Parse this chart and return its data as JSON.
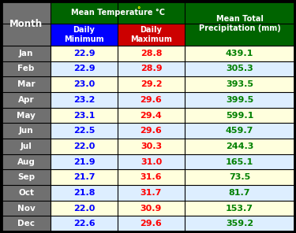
{
  "months": [
    "Jan",
    "Feb",
    "Mar",
    "Apr",
    "May",
    "Jun",
    "Jul",
    "Aug",
    "Sep",
    "Oct",
    "Nov",
    "Dec"
  ],
  "daily_min": [
    22.9,
    22.9,
    23.0,
    23.2,
    23.1,
    22.5,
    22.0,
    21.9,
    21.7,
    21.8,
    22.0,
    22.6
  ],
  "daily_max": [
    28.8,
    28.9,
    29.2,
    29.6,
    29.4,
    29.6,
    30.3,
    31.0,
    31.6,
    31.7,
    30.9,
    29.6
  ],
  "precipitation": [
    439.1,
    305.3,
    393.5,
    399.5,
    599.1,
    459.7,
    244.3,
    165.1,
    73.5,
    81.7,
    153.7,
    359.2
  ],
  "header_bg_dark_green": "#006400",
  "header_bg_blue": "#0000FF",
  "header_bg_red": "#CC0000",
  "header_text_color": "#FFFFFF",
  "month_col_bg": "#707070",
  "row_bg_light_yellow": "#FFFFDD",
  "row_bg_light_blue": "#DDEEFF",
  "min_text_color": "#0000FF",
  "max_text_color": "#FF0000",
  "precip_text_color": "#008000",
  "title_precip": "Mean Total\nPrecipitation (mm)",
  "col_month": "Month",
  "col_min": "Daily\nMinimum",
  "col_max": "Daily\nMaximum",
  "border_color": "#000000",
  "header_yellow_text": "#FFFF00"
}
